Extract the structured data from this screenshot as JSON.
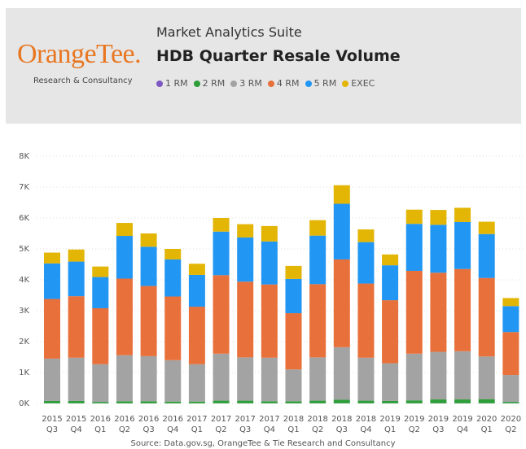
{
  "header": {
    "logo": "OrangeTee.",
    "logo_subtitle": "Research & Consultancy",
    "suite": "Market Analytics Suite"
  },
  "chart_data": {
    "type": "stacked_bar",
    "title": "HDB Quarter Resale Volume",
    "source": "Source: Data.gov.sg, OrangeTee & Tie Research and Consultancy",
    "categories": [
      "2015 Q3",
      "2015 Q4",
      "2016 Q1",
      "2016 Q2",
      "2016 Q3",
      "2016 Q4",
      "2017 Q1",
      "2017 Q2",
      "2017 Q3",
      "2017 Q4",
      "2018 Q1",
      "2018 Q2",
      "2018 Q3",
      "2018 Q4",
      "2019 Q1",
      "2019 Q2",
      "2019 Q3",
      "2019 Q4",
      "2020 Q1",
      "2020 Q2"
    ],
    "series": [
      {
        "name": "1 RM",
        "color": "#7e57c2",
        "values": [
          5,
          5,
          5,
          5,
          5,
          5,
          5,
          5,
          5,
          5,
          5,
          5,
          5,
          5,
          5,
          5,
          5,
          5,
          5,
          5
        ]
      },
      {
        "name": "2 RM",
        "color": "#2e9e3a",
        "values": [
          75,
          75,
          45,
          65,
          65,
          55,
          55,
          85,
          85,
          65,
          65,
          85,
          115,
          85,
          75,
          95,
          125,
          125,
          135,
          45
        ]
      },
      {
        "name": "3 RM",
        "color": "#a3a3a3",
        "values": [
          1370,
          1400,
          1220,
          1490,
          1460,
          1340,
          1210,
          1520,
          1400,
          1410,
          1030,
          1400,
          1700,
          1390,
          1220,
          1510,
          1540,
          1560,
          1380,
          870
        ]
      },
      {
        "name": "4 RM",
        "color": "#e8703a",
        "values": [
          1930,
          1990,
          1810,
          2480,
          2270,
          2060,
          1860,
          2540,
          2450,
          2370,
          1820,
          2370,
          2840,
          2400,
          2040,
          2680,
          2560,
          2660,
          2540,
          1390
        ]
      },
      {
        "name": "5 RM",
        "color": "#2196f3",
        "values": [
          1150,
          1120,
          1010,
          1380,
          1270,
          1200,
          1030,
          1410,
          1430,
          1390,
          1110,
          1570,
          1800,
          1340,
          1130,
          1520,
          1550,
          1520,
          1420,
          840
        ]
      },
      {
        "name": "EXEC",
        "color": "#e3b505",
        "values": [
          350,
          390,
          340,
          420,
          430,
          340,
          360,
          440,
          430,
          500,
          420,
          500,
          600,
          410,
          350,
          460,
          480,
          460,
          400,
          260
        ]
      }
    ],
    "ylim": [
      0,
      8000
    ],
    "yticks": [
      {
        "value": 0,
        "label": "0K"
      },
      {
        "value": 1000,
        "label": "1K"
      },
      {
        "value": 2000,
        "label": "2K"
      },
      {
        "value": 3000,
        "label": "3K"
      },
      {
        "value": 4000,
        "label": "4K"
      },
      {
        "value": 5000,
        "label": "5K"
      },
      {
        "value": 6000,
        "label": "6K"
      },
      {
        "value": 7000,
        "label": "7K"
      },
      {
        "value": 8000,
        "label": "8K"
      }
    ],
    "grid": true
  }
}
